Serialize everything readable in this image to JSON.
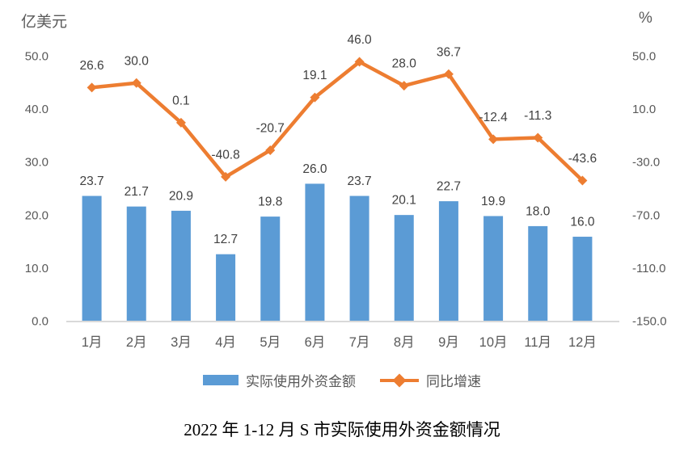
{
  "chart_data": {
    "type": "bar",
    "subtype": "combo-bar-line",
    "title": "2022 年 1-12 月 S 市实际使用外资金额情况",
    "categories": [
      "1月",
      "2月",
      "3月",
      "4月",
      "5月",
      "6月",
      "7月",
      "8月",
      "9月",
      "10月",
      "11月",
      "12月"
    ],
    "series": [
      {
        "name": "实际使用外资金额",
        "type": "bar",
        "axis": "left",
        "color": "#5B9BD5",
        "values": [
          23.7,
          21.7,
          20.9,
          12.7,
          19.8,
          26.0,
          23.7,
          20.1,
          22.7,
          19.9,
          18.0,
          16.0
        ]
      },
      {
        "name": "同比增速",
        "type": "line",
        "axis": "right",
        "color": "#ED7D31",
        "values": [
          26.6,
          30.0,
          0.1,
          -40.8,
          -20.7,
          19.1,
          46.0,
          28.0,
          36.7,
          -12.4,
          -11.3,
          -43.6
        ]
      }
    ],
    "left_axis": {
      "label": "亿美元",
      "min": 0,
      "max": 50,
      "ticks": [
        "0.0",
        "10.0",
        "20.0",
        "30.0",
        "40.0",
        "50.0"
      ]
    },
    "right_axis": {
      "label": "%",
      "min": -150,
      "max": 50,
      "ticks": [
        "-150.0",
        "-110.0",
        "-70.0",
        "-30.0",
        "10.0",
        "50.0"
      ]
    },
    "legend_position": "bottom",
    "gridlines": false,
    "colors": {
      "tick_text": "#595959",
      "data_label_text": "#404040",
      "axis_line": "#D9D9D9",
      "title_text": "#000000"
    }
  }
}
